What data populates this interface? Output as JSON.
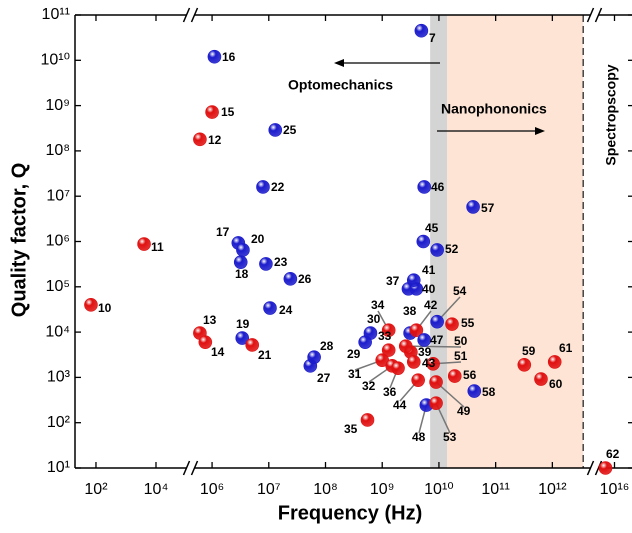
{
  "chart_data": {
    "type": "scatter",
    "x_label": "Frequency (Hz)",
    "y_label": "Quality factor, Q",
    "log_x": true,
    "log_y": true,
    "ylim": [
      10,
      100000000000
    ],
    "yticks": [
      {
        "value": 10,
        "label": "10¹"
      },
      {
        "value": 100,
        "label": "10²"
      },
      {
        "value": 1000,
        "label": "10³"
      },
      {
        "value": 10000,
        "label": "10⁴"
      },
      {
        "value": 100000,
        "label": "10⁵"
      },
      {
        "value": 1000000,
        "label": "10⁶"
      },
      {
        "value": 10000000,
        "label": "10⁷"
      },
      {
        "value": 100000000,
        "label": "10⁸"
      },
      {
        "value": 1000000000,
        "label": "10⁹"
      },
      {
        "value": 10000000000,
        "label": "10¹⁰"
      },
      {
        "value": 100000000000,
        "label": "10¹¹"
      }
    ],
    "x_segments": [
      {
        "xlim": [
          20,
          100000
        ],
        "xticks": [
          {
            "value": 100,
            "label": "10²"
          },
          {
            "value": 10000,
            "label": "10⁴"
          }
        ]
      },
      {
        "xlim": [
          500000,
          5000000000000
        ],
        "xticks": [
          {
            "value": 1000000,
            "label": "10⁶"
          },
          {
            "value": 10000000,
            "label": "10⁷"
          },
          {
            "value": 100000000,
            "label": "10⁸"
          },
          {
            "value": 1000000000,
            "label": "10⁹"
          },
          {
            "value": 10000000000,
            "label": "10¹⁰"
          },
          {
            "value": 100000000000,
            "label": "10¹¹"
          },
          {
            "value": 1000000000000,
            "label": "10¹²"
          }
        ]
      },
      {
        "xlim": [
          5000000000000000,
          20000000000000000
        ],
        "xticks": [
          {
            "value": 10000000000000000,
            "label": "10¹⁶"
          }
        ]
      }
    ],
    "regions": [
      {
        "xlim": [
          7000000000,
          14000000000
        ],
        "color": "#d4d4d4"
      },
      {
        "xlim": [
          14000000000,
          3500000000000
        ],
        "color": "#fde4d4",
        "right_edge": "dashed"
      }
    ],
    "annotations": [
      "Optomechanics",
      "Nanophononics",
      "Spectropscopy"
    ],
    "points": [
      {
        "label": "7",
        "x": 4900000000,
        "y": 45000000000,
        "color": "#1c1ccc"
      },
      {
        "label": "10",
        "x": 68,
        "y": 40000,
        "color": "#e01010"
      },
      {
        "label": "11",
        "x": 4000,
        "y": 880000,
        "color": "#e01010"
      },
      {
        "label": "12",
        "x": 610000,
        "y": 180000000,
        "color": "#e01010"
      },
      {
        "label": "13",
        "x": 610000,
        "y": 9500,
        "color": "#e01010"
      },
      {
        "label": "14",
        "x": 760000,
        "y": 6000,
        "color": "#e01010"
      },
      {
        "label": "15",
        "x": 1000000,
        "y": 720000000,
        "color": "#e01010"
      },
      {
        "label": "16",
        "x": 1100000,
        "y": 12000000000,
        "color": "#1c1ccc"
      },
      {
        "label": "17",
        "x": 2900000,
        "y": 930000,
        "color": "#1c1ccc"
      },
      {
        "label": "18",
        "x": 3200000,
        "y": 350000,
        "color": "#1c1ccc"
      },
      {
        "label": "19",
        "x": 3400000,
        "y": 7400,
        "color": "#1c1ccc"
      },
      {
        "label": "20",
        "x": 3500000,
        "y": 650000,
        "color": "#1c1ccc"
      },
      {
        "label": "21",
        "x": 5100000,
        "y": 5200,
        "color": "#e01010"
      },
      {
        "label": "22",
        "x": 7900000,
        "y": 16000000,
        "color": "#1c1ccc"
      },
      {
        "label": "23",
        "x": 8900000,
        "y": 320000,
        "color": "#1c1ccc"
      },
      {
        "label": "24",
        "x": 10500000,
        "y": 34000,
        "color": "#1c1ccc"
      },
      {
        "label": "25",
        "x": 13000000,
        "y": 290000000,
        "color": "#1c1ccc"
      },
      {
        "label": "26",
        "x": 24000000,
        "y": 150000,
        "color": "#1c1ccc"
      },
      {
        "label": "27",
        "x": 54000000,
        "y": 1800,
        "color": "#1c1ccc"
      },
      {
        "label": "28",
        "x": 63000000,
        "y": 2800,
        "color": "#1c1ccc"
      },
      {
        "label": "29",
        "x": 500000000,
        "y": 6000,
        "color": "#1c1ccc"
      },
      {
        "label": "30",
        "x": 620000000,
        "y": 9500,
        "color": "#1c1ccc"
      },
      {
        "label": "31",
        "x": 1000000000,
        "y": 2400,
        "color": "#e01010"
      },
      {
        "label": "32",
        "x": 1500000000,
        "y": 1800,
        "color": "#e01010"
      },
      {
        "label": "33",
        "x": 1300000000,
        "y": 4000,
        "color": "#e01010"
      },
      {
        "label": "34",
        "x": 1300000000,
        "y": 11000,
        "color": "#e01010"
      },
      {
        "label": "35",
        "x": 550000000,
        "y": 115,
        "color": "#e01010"
      },
      {
        "label": "36",
        "x": 1900000000,
        "y": 1600,
        "color": "#e01010"
      },
      {
        "label": "37",
        "x": 2900000000,
        "y": 90000,
        "color": "#1c1ccc"
      },
      {
        "label": "38",
        "x": 3100000000,
        "y": 9500,
        "color": "#1c1ccc"
      },
      {
        "label": "39",
        "x": 3200000000,
        "y": 3600,
        "color": "#e01010"
      },
      {
        "label": "40",
        "x": 4000000000,
        "y": 90000,
        "color": "#1c1ccc"
      },
      {
        "label": "41",
        "x": 3600000000,
        "y": 140000,
        "color": "#1c1ccc"
      },
      {
        "label": "42",
        "x": 4000000000,
        "y": 11000,
        "color": "#e01010"
      },
      {
        "label": "43",
        "x": 3600000000,
        "y": 2200,
        "color": "#e01010"
      },
      {
        "label": "44",
        "x": 4300000000,
        "y": 870,
        "color": "#e01010"
      },
      {
        "label": "45",
        "x": 5300000000,
        "y": 1000000,
        "color": "#1c1ccc"
      },
      {
        "label": "46",
        "x": 5500000000,
        "y": 16000000,
        "color": "#1c1ccc"
      },
      {
        "label": "47",
        "x": 5500000000,
        "y": 6700,
        "color": "#1c1ccc"
      },
      {
        "label": "48",
        "x": 6000000000,
        "y": 245,
        "color": "#1c1ccc"
      },
      {
        "label": "49",
        "x": 8900000000,
        "y": 790,
        "color": "#e01010"
      },
      {
        "label": "50",
        "x": 2600000000,
        "y": 4900,
        "color": "#e01010"
      },
      {
        "label": "51",
        "x": 7900000000,
        "y": 2000,
        "color": "#e01010"
      },
      {
        "label": "52",
        "x": 9300000000,
        "y": 650000,
        "color": "#1c1ccc"
      },
      {
        "label": "53",
        "x": 8900000000,
        "y": 270,
        "color": "#e01010"
      },
      {
        "label": "54",
        "x": 9300000000,
        "y": 17000,
        "color": "#1c1ccc"
      },
      {
        "label": "55",
        "x": 17000000000,
        "y": 15000,
        "color": "#e01010"
      },
      {
        "label": "56",
        "x": 19000000000,
        "y": 1070,
        "color": "#e01010"
      },
      {
        "label": "57",
        "x": 40000000000,
        "y": 5800000,
        "color": "#1c1ccc"
      },
      {
        "label": "58",
        "x": 42000000000,
        "y": 500,
        "color": "#1c1ccc"
      },
      {
        "label": "59",
        "x": 320000000000,
        "y": 1900,
        "color": "#e01010"
      },
      {
        "label": "60",
        "x": 630000000000,
        "y": 920,
        "color": "#e01010"
      },
      {
        "label": "61",
        "x": 1100000000000,
        "y": 2200,
        "color": "#e01010"
      },
      {
        "label": "62",
        "x": 7000000000000000,
        "y": 10,
        "color": "#e01010"
      }
    ]
  }
}
